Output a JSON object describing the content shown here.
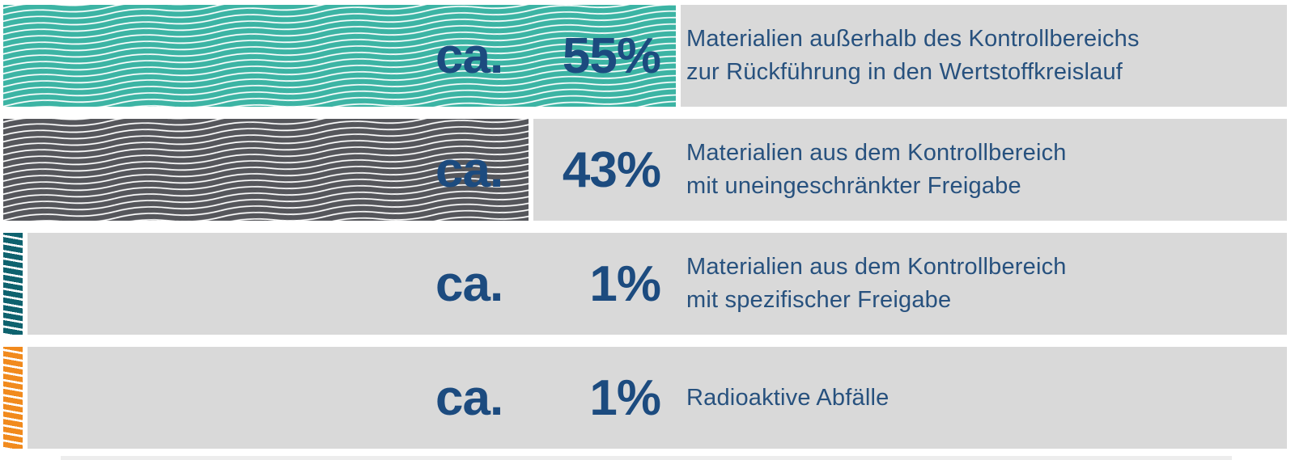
{
  "chart_data": {
    "type": "bar",
    "orientation": "horizontal",
    "title": "",
    "xlabel": "",
    "ylabel": "",
    "xlim": [
      0,
      100
    ],
    "grid": false,
    "legend": false,
    "unit": "%",
    "value_prefix": "ca.",
    "categories": [
      "Materialien außerhalb des Kontrollbereichs zur Rückführung in den Wertstoffkreislauf",
      "Materialien aus dem Kontrollbereich mit uneingeschränkter Freigabe",
      "Materialien aus dem Kontrollbereich mit spezifischer Freigabe",
      "Radioaktive Abfälle"
    ],
    "values": [
      55,
      43,
      1,
      1
    ],
    "value_labels": [
      "ca. 55%",
      "ca. 43%",
      "ca. 1%",
      "ca. 1%"
    ],
    "bar_colors": [
      "#3cb4a4",
      "#55565b",
      "#0e626e",
      "#f18a1d"
    ],
    "bar_patterns": [
      "white-wavy-lines",
      "white-wavy-lines",
      "white-diagonal-stripes",
      "white-diagonal-stripes"
    ],
    "row_background_color": "#d9d9d9",
    "text_color": "#1c4b7f"
  },
  "rows": [
    {
      "prefix": "ca.",
      "value": "55%",
      "line1": "Materialien außerhalb des Kontrollbereichs",
      "line2": "zur Rückführung in den Wertstoffkreislauf"
    },
    {
      "prefix": "ca.",
      "value": "43%",
      "line1": "Materialien aus dem Kontrollbereich",
      "line2": "mit uneingeschränkter Freigabe"
    },
    {
      "prefix": "ca.",
      "value": "1%",
      "line1": "Materialien aus dem Kontrollbereich",
      "line2": "mit spezifischer Freigabe"
    },
    {
      "prefix": "ca.",
      "value": "1%",
      "line1": "Radioaktive Abfälle",
      "line2": ""
    }
  ]
}
